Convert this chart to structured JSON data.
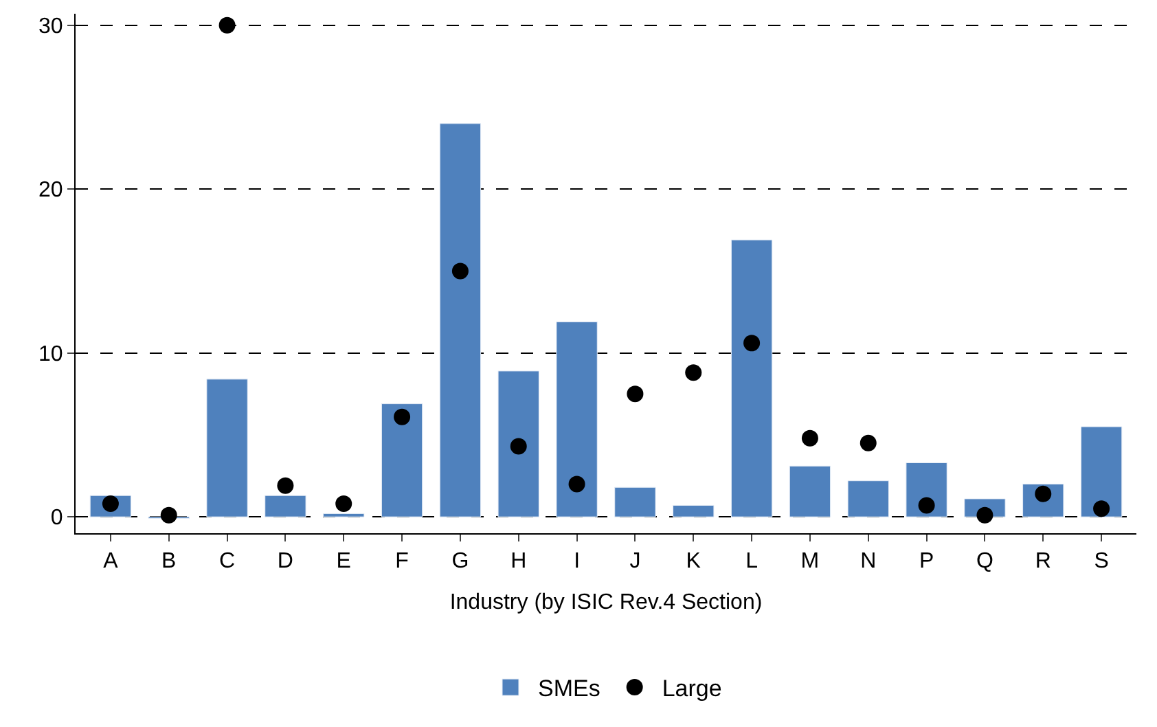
{
  "chart_data": {
    "type": "bar",
    "xlabel": "Industry (by ISIC Rev.4 Section)",
    "categories": [
      "A",
      "B",
      "C",
      "D",
      "E",
      "F",
      "G",
      "H",
      "I",
      "J",
      "K",
      "L",
      "M",
      "N",
      "P",
      "Q",
      "R",
      "S"
    ],
    "series": [
      {
        "name": "SMEs",
        "color": "#4f81bd",
        "values": [
          1.3,
          -0.1,
          8.4,
          1.3,
          0.2,
          6.9,
          24.0,
          8.9,
          11.9,
          1.8,
          0.7,
          16.9,
          3.1,
          2.2,
          3.3,
          1.1,
          2.0,
          5.5
        ]
      },
      {
        "name": "Large",
        "type": "scatter",
        "color": "#000000",
        "marker": "circle",
        "values": [
          0.8,
          0.1,
          30.0,
          1.9,
          0.8,
          6.1,
          15.0,
          4.3,
          2.0,
          7.5,
          8.8,
          10.6,
          4.8,
          4.5,
          0.7,
          0.1,
          1.4,
          0.5
        ]
      }
    ],
    "ylim": [
      -1,
      30.7
    ],
    "yticks": [
      0,
      10,
      20,
      30
    ],
    "grid": "y",
    "legend": "bottom"
  }
}
